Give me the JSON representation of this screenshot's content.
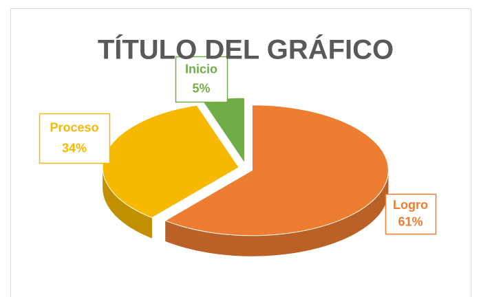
{
  "chart_data": {
    "type": "pie",
    "title": "TÍTULO DEL GRÁFICO",
    "categories": [
      "Logro",
      "Proceso",
      "Inicio"
    ],
    "values": [
      61,
      34,
      5
    ],
    "value_labels": [
      "61%",
      "34%",
      "5%"
    ],
    "colors": [
      "#ED7D31",
      "#F7B900",
      "#70AD47"
    ],
    "three_d": true
  }
}
